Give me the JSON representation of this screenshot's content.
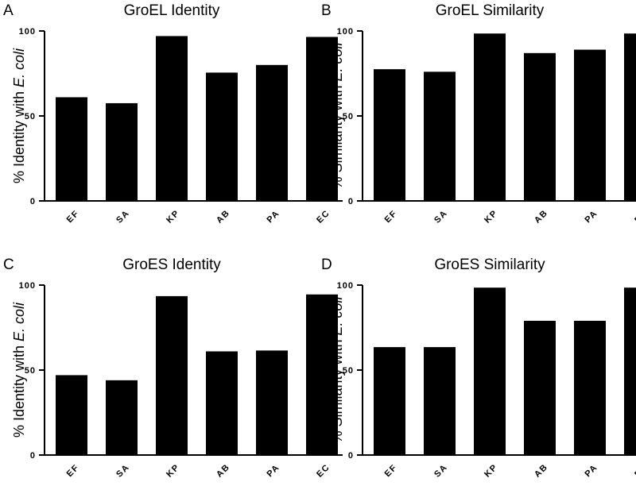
{
  "colors": {
    "bar": "#000000",
    "axis": "#000000",
    "background": "#ffffff"
  },
  "chart_data": [
    {
      "panel": "A",
      "type": "bar",
      "title": "GroEL Identity",
      "xlabel": "",
      "ylabel_prefix": "% Identity with ",
      "ylabel_species": "E. coli",
      "categories": [
        "EF",
        "SA",
        "KP",
        "AB",
        "PA",
        "EC"
      ],
      "values": [
        61,
        57.5,
        97,
        75.5,
        80,
        96.5
      ],
      "ylim": [
        0,
        100
      ],
      "yticks": [
        0,
        50,
        100
      ],
      "grid": false,
      "legend": "none"
    },
    {
      "panel": "B",
      "type": "bar",
      "title": "GroEL Similarity",
      "xlabel": "",
      "ylabel_prefix": "% Similarity with ",
      "ylabel_species": "E. coli",
      "categories": [
        "EF",
        "SA",
        "KP",
        "AB",
        "PA",
        "EC"
      ],
      "values": [
        77.5,
        76,
        98.5,
        87,
        89,
        98.5
      ],
      "ylim": [
        0,
        100
      ],
      "yticks": [
        0,
        50,
        100
      ],
      "grid": false,
      "legend": "none"
    },
    {
      "panel": "C",
      "type": "bar",
      "title": "GroES Identity",
      "xlabel": "",
      "ylabel_prefix": "% Identity with ",
      "ylabel_species": "E. coli",
      "categories": [
        "EF",
        "SA",
        "KP",
        "AB",
        "PA",
        "EC"
      ],
      "values": [
        47,
        44,
        93.5,
        61,
        61.5,
        94.5
      ],
      "ylim": [
        0,
        100
      ],
      "yticks": [
        0,
        50,
        100
      ],
      "grid": false,
      "legend": "none"
    },
    {
      "panel": "D",
      "type": "bar",
      "title": "GroES Similarity",
      "xlabel": "",
      "ylabel_prefix": "% Similarity with ",
      "ylabel_species": "E. coli",
      "categories": [
        "EF",
        "SA",
        "KP",
        "AB",
        "PA",
        "EC"
      ],
      "values": [
        63.5,
        63.5,
        98.5,
        79,
        79,
        98.5
      ],
      "ylim": [
        0,
        100
      ],
      "yticks": [
        0,
        50,
        100
      ],
      "grid": false,
      "legend": "none"
    }
  ]
}
